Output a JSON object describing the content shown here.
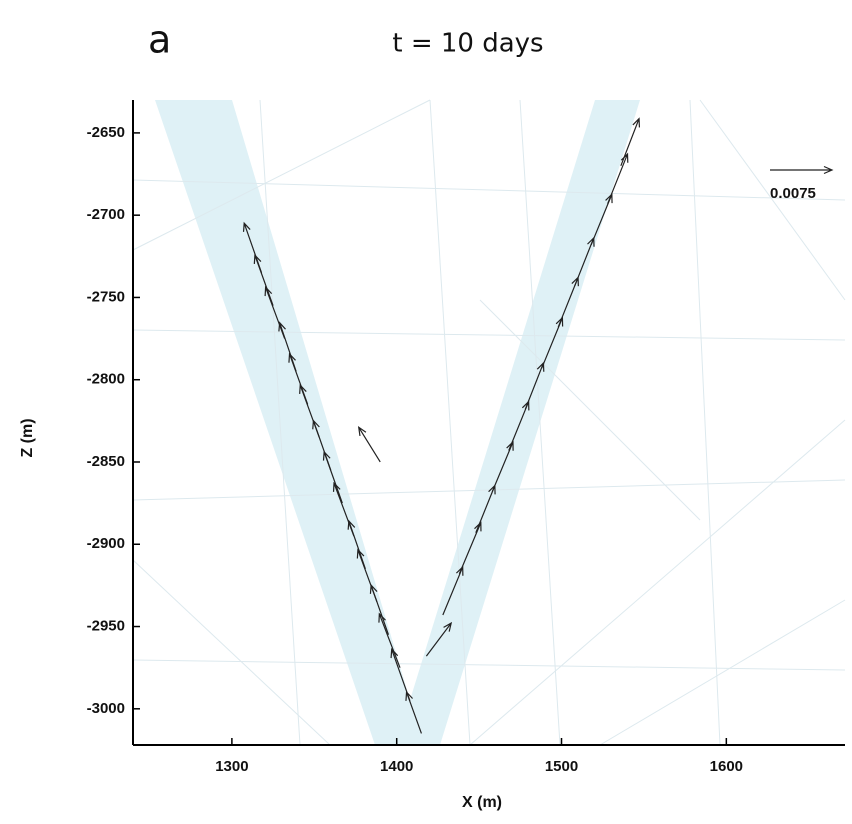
{
  "chart_data": {
    "type": "quiver",
    "panel_label": "a",
    "title": "t = 10 days",
    "x_label": "X (m)",
    "y_label": "Z (m)",
    "xlim": [
      1240,
      1672
    ],
    "ylim": [
      -3022,
      -2630
    ],
    "xticks": [
      1300,
      1400,
      1500,
      1600
    ],
    "yticks": [
      -2650,
      -2700,
      -2750,
      -2800,
      -2850,
      -2900,
      -2950,
      -3000
    ],
    "color": "#222222",
    "reference_vector": 0.0075,
    "x": [
      1415,
      1408,
      1402,
      1395,
      1388,
      1381,
      1374,
      1367,
      1360,
      1353,
      1346,
      1339,
      1332,
      1325,
      1318,
      1418,
      1428,
      1438,
      1448,
      1458,
      1468,
      1478,
      1488,
      1498,
      1508,
      1518,
      1528,
      1536,
      1390
    ],
    "y": [
      -3015,
      -2995,
      -2975,
      -2955,
      -2935,
      -2915,
      -2895,
      -2875,
      -2855,
      -2835,
      -2815,
      -2795,
      -2775,
      -2755,
      -2735,
      -2968,
      -2943,
      -2918,
      -2893,
      -2868,
      -2843,
      -2818,
      -2793,
      -2768,
      -2743,
      -2718,
      -2693,
      -2670,
      -2850
    ],
    "u": [
      -0.0018,
      -0.0022,
      -0.0025,
      -0.0021,
      -0.0023,
      -0.002,
      -0.0024,
      -0.0022,
      -0.0021,
      -0.0023,
      -0.0022,
      -0.002,
      -0.0023,
      -0.0022,
      -0.0021,
      0.003,
      0.0024,
      0.0026,
      0.0023,
      0.0025,
      0.0024,
      0.0022,
      0.0025,
      0.0024,
      0.0023,
      0.0025,
      0.0024,
      0.0022,
      -0.0026
    ],
    "v": [
      0.005,
      0.0062,
      0.0065,
      0.006,
      0.0063,
      0.0058,
      0.0064,
      0.0062,
      0.006,
      0.0063,
      0.0061,
      0.0059,
      0.0062,
      0.0061,
      0.006,
      0.004,
      0.0058,
      0.0062,
      0.0057,
      0.006,
      0.0059,
      0.0056,
      0.0061,
      0.006,
      0.0058,
      0.0061,
      0.006,
      0.0057,
      0.0042
    ]
  }
}
